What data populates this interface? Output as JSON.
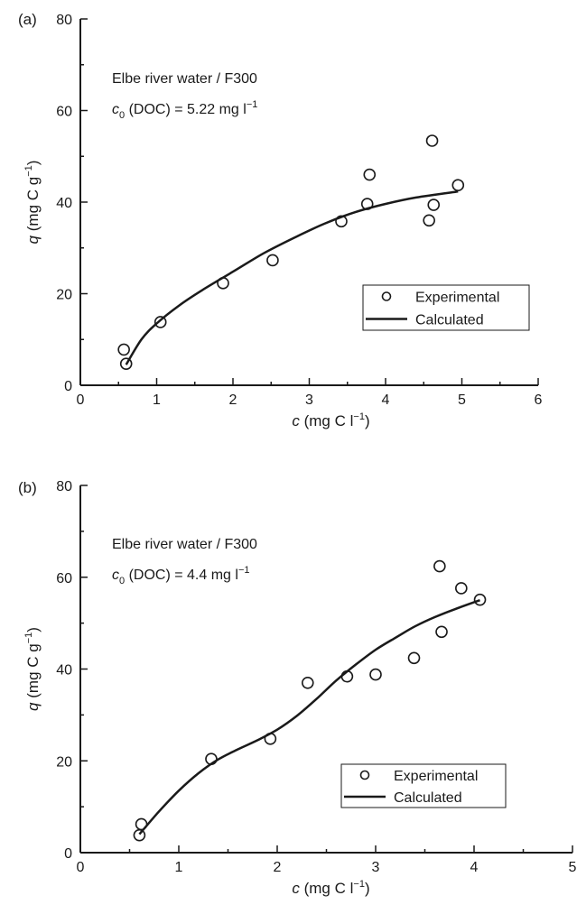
{
  "chart_data": [
    {
      "panel_label": "(a)",
      "type": "scatter",
      "annotation_line1": "Elbe river water / F300",
      "annotation_c": "c",
      "annotation_sub": "0",
      "annotation_rest": " (DOC) = 5.22 mg l",
      "annotation_exp": "−1",
      "xlabel_var": "c",
      "xlabel_units": " (mg C l",
      "xlabel_exp": "−1",
      "xlabel_close": ")",
      "ylabel_var": "q",
      "ylabel_units": " (mg C g",
      "ylabel_exp": "−1",
      "ylabel_close": ")",
      "xlim": [
        0,
        6
      ],
      "ylim": [
        0,
        80
      ],
      "xticks": [
        0,
        1,
        2,
        3,
        4,
        5,
        6
      ],
      "yticks": [
        0,
        20,
        40,
        60,
        80
      ],
      "xminor": 0.5,
      "yminor": 10,
      "legend_position": "right-lower",
      "series": [
        {
          "name": "Experimental",
          "kind": "scatter",
          "marker": "open-circle",
          "x": [
            0.57,
            0.6,
            1.05,
            1.87,
            2.52,
            3.42,
            3.76,
            3.79,
            4.57,
            4.61,
            4.63,
            4.95
          ],
          "y": [
            7.8,
            4.7,
            13.8,
            22.3,
            27.3,
            35.8,
            39.6,
            46.0,
            36.0,
            53.4,
            39.4,
            43.7
          ]
        },
        {
          "name": "Calculated",
          "kind": "line",
          "x": [
            0.6,
            0.8,
            1.0,
            1.3,
            1.6,
            2.0,
            2.4,
            2.8,
            3.2,
            3.6,
            4.0,
            4.4,
            4.95
          ],
          "y": [
            4.5,
            10.0,
            13.5,
            17.5,
            20.8,
            24.8,
            28.8,
            32.2,
            35.3,
            37.8,
            39.6,
            41.0,
            42.3
          ]
        }
      ]
    },
    {
      "panel_label": "(b)",
      "type": "scatter",
      "annotation_line1": "Elbe river water / F300",
      "annotation_c": "c",
      "annotation_sub": "0",
      "annotation_rest": " (DOC) = 4.4 mg l",
      "annotation_exp": "−1",
      "xlabel_var": "c",
      "xlabel_units": " (mg C l",
      "xlabel_exp": "−1",
      "xlabel_close": ")",
      "ylabel_var": "q",
      "ylabel_units": " (mg C g",
      "ylabel_exp": "−1",
      "ylabel_close": ")",
      "xlim": [
        0,
        5
      ],
      "ylim": [
        0,
        80
      ],
      "xticks": [
        0,
        1,
        2,
        3,
        4,
        5
      ],
      "yticks": [
        0,
        20,
        40,
        60,
        80
      ],
      "xminor": 0.5,
      "yminor": 10,
      "legend_position": "right-lower",
      "series": [
        {
          "name": "Experimental",
          "kind": "scatter",
          "marker": "open-circle",
          "x": [
            0.6,
            0.62,
            1.33,
            1.93,
            2.31,
            2.71,
            3.0,
            3.39,
            3.65,
            3.67,
            3.87,
            4.06
          ],
          "y": [
            3.8,
            6.2,
            20.4,
            24.8,
            37.0,
            38.4,
            38.8,
            42.4,
            62.4,
            48.1,
            57.6,
            55.1
          ]
        },
        {
          "name": "Calculated",
          "kind": "line",
          "x": [
            0.6,
            0.8,
            1.0,
            1.2,
            1.4,
            1.6,
            1.8,
            2.0,
            2.2,
            2.4,
            2.6,
            2.8,
            3.0,
            3.2,
            3.4,
            3.6,
            3.8,
            4.06
          ],
          "y": [
            4.0,
            9.0,
            13.5,
            17.3,
            20.3,
            22.5,
            24.5,
            26.8,
            29.8,
            33.5,
            37.5,
            41.0,
            44.2,
            46.8,
            49.3,
            51.3,
            53.0,
            55.0
          ]
        }
      ]
    }
  ]
}
